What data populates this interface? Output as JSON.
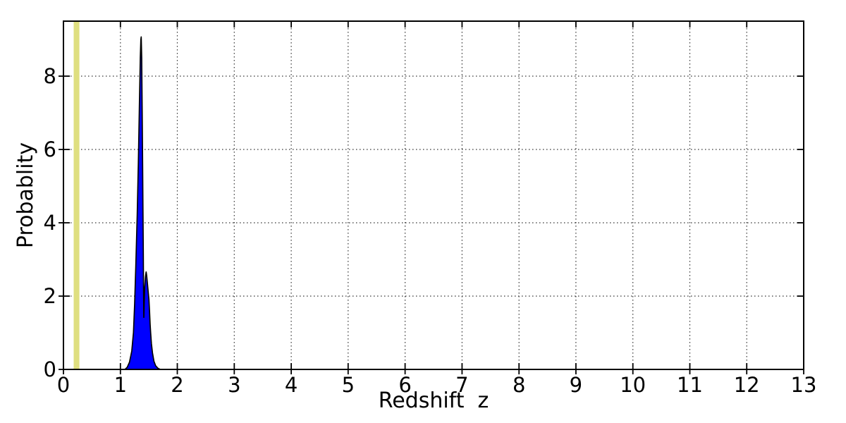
{
  "chart_data": {
    "type": "area",
    "title": "",
    "xlabel": "Redshift  z",
    "ylabel": "Probablity",
    "xlim": [
      0,
      13
    ],
    "ylim": [
      0,
      9.5
    ],
    "x_ticks": [
      0,
      1,
      2,
      3,
      4,
      5,
      6,
      7,
      8,
      9,
      10,
      11,
      12,
      13
    ],
    "y_ticks": [
      0,
      2,
      4,
      6,
      8
    ],
    "grid": {
      "style": "dotted",
      "color": "#333333"
    },
    "axes_color": "#000000",
    "background_color": "#ffffff",
    "legend": null,
    "series": [
      {
        "name": "redshift probability density",
        "type": "filled_curve",
        "fill_color": "#0000ff",
        "edge_color": "#000000",
        "points": [
          [
            1.08,
            0.0
          ],
          [
            1.12,
            0.06
          ],
          [
            1.16,
            0.2
          ],
          [
            1.2,
            0.5
          ],
          [
            1.23,
            1.0
          ],
          [
            1.25,
            1.8
          ],
          [
            1.27,
            2.8
          ],
          [
            1.295,
            4.2
          ],
          [
            1.315,
            5.6
          ],
          [
            1.335,
            7.3
          ],
          [
            1.35,
            8.5
          ],
          [
            1.36,
            9.0
          ],
          [
            1.366,
            9.07
          ],
          [
            1.374,
            8.5
          ],
          [
            1.383,
            7.0
          ],
          [
            1.39,
            5.6
          ],
          [
            1.397,
            4.3
          ],
          [
            1.403,
            3.1
          ],
          [
            1.407,
            2.2
          ],
          [
            1.41,
            1.7
          ],
          [
            1.412,
            1.42
          ],
          [
            1.415,
            1.65
          ],
          [
            1.42,
            1.95
          ],
          [
            1.428,
            2.25
          ],
          [
            1.44,
            2.52
          ],
          [
            1.452,
            2.66
          ],
          [
            1.462,
            2.55
          ],
          [
            1.475,
            2.35
          ],
          [
            1.49,
            2.1
          ],
          [
            1.502,
            1.9
          ],
          [
            1.512,
            1.6
          ],
          [
            1.522,
            1.25
          ],
          [
            1.531,
            1.0
          ],
          [
            1.545,
            0.7
          ],
          [
            1.564,
            0.45
          ],
          [
            1.59,
            0.22
          ],
          [
            1.62,
            0.1
          ],
          [
            1.66,
            0.03
          ],
          [
            1.7,
            0.0
          ]
        ]
      }
    ],
    "annotations": [
      {
        "type": "vspan",
        "name": "low-redshift highlight band",
        "x_start": 0.18,
        "x_end": 0.28,
        "color": "#dfdf80"
      }
    ],
    "peaks": [
      {
        "z": 1.37,
        "p": 9.1
      },
      {
        "z": 1.45,
        "p": 2.7
      }
    ]
  }
}
